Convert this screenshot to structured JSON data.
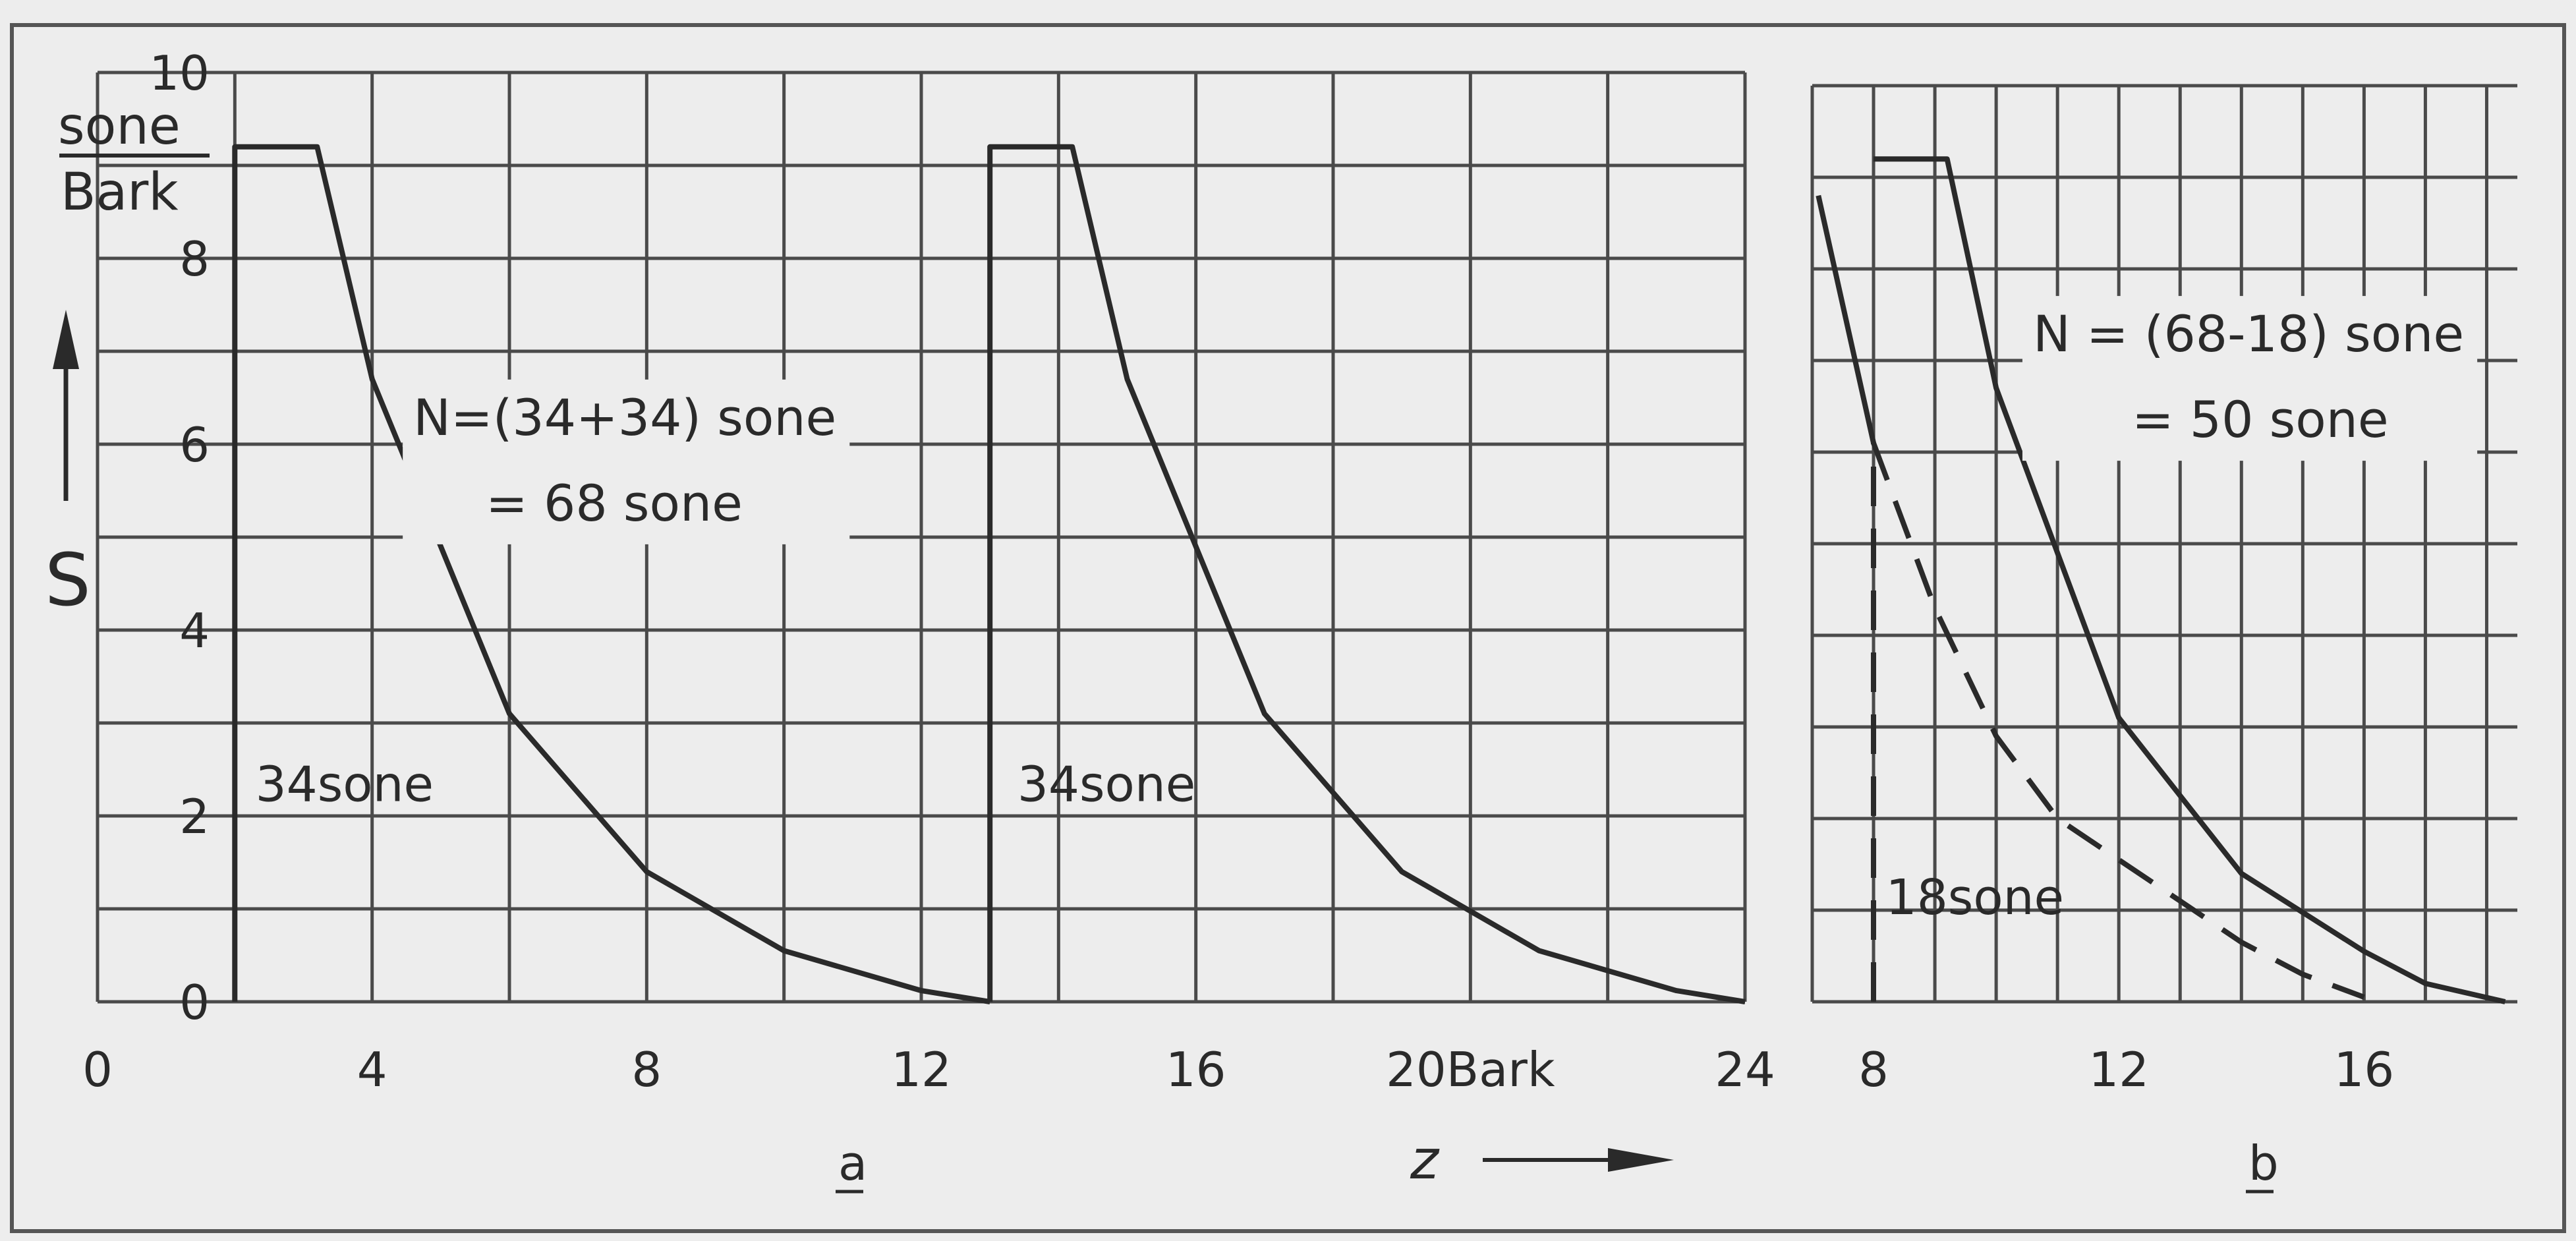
{
  "figure": {
    "y_unit_num": "sone",
    "y_unit_den": "Bark",
    "y_symbol": "S",
    "x_symbol": "z",
    "x_unit": "Bark",
    "panel_a_label": "a",
    "panel_b_label": "b",
    "text_color": "#2a2a2a",
    "grid_color": "#4a4a4a",
    "background": "#ededed"
  },
  "chart_data": [
    {
      "panel": "a",
      "type": "line",
      "xlim": [
        0,
        24
      ],
      "ylim": [
        0,
        10
      ],
      "xticks": [
        0,
        4,
        8,
        12,
        16,
        20,
        24
      ],
      "xtick_labels": [
        "0",
        "4",
        "8",
        "12",
        "16",
        "20Bark",
        "24"
      ],
      "yticks": [
        0,
        2,
        4,
        6,
        8,
        10
      ],
      "ytick_labels": [
        "0",
        "2",
        "4",
        "6",
        "8",
        "10"
      ],
      "grid": true,
      "x_grid_step": 2,
      "y_grid_step": 1,
      "series": [
        {
          "line_style": "solid",
          "points": [
            [
              2,
              0
            ],
            [
              2,
              9.2
            ],
            [
              3.2,
              9.2
            ],
            [
              4,
              6.7
            ],
            [
              6,
              3.1
            ],
            [
              8,
              1.4
            ],
            [
              10,
              0.55
            ],
            [
              12,
              0.12
            ],
            [
              13,
              0
            ]
          ]
        },
        {
          "line_style": "solid",
          "points": [
            [
              13,
              0
            ],
            [
              13,
              9.2
            ],
            [
              14.2,
              9.2
            ],
            [
              15,
              6.7
            ],
            [
              17,
              3.1
            ],
            [
              19,
              1.4
            ],
            [
              21,
              0.55
            ],
            [
              23,
              0.12
            ],
            [
              24,
              0
            ]
          ]
        }
      ],
      "annotations": [
        {
          "text": "34sone",
          "x": 2.3,
          "y": 2.3
        },
        {
          "text": "34sone",
          "x": 13.4,
          "y": 2.3
        }
      ],
      "equation": {
        "line1": "N=(34+34) sone",
        "line2": "= 68 sone",
        "x": 4.6,
        "y": 6.1
      }
    },
    {
      "panel": "b",
      "type": "line",
      "xlim": [
        7,
        18.5
      ],
      "ylim": [
        0,
        10
      ],
      "xticks": [
        8,
        12,
        16
      ],
      "xtick_labels": [
        "8",
        "12",
        "16"
      ],
      "grid": true,
      "x_grid_step": 1,
      "y_grid_step": 1,
      "series": [
        {
          "line_style": "solid",
          "points": [
            [
              7.1,
              8.8
            ],
            [
              7.5,
              7.6
            ],
            [
              8.0,
              6.1
            ]
          ]
        },
        {
          "line_style": "solid",
          "points": [
            [
              8,
              9.2
            ],
            [
              9.2,
              9.2
            ],
            [
              10,
              6.7
            ],
            [
              12,
              3.1
            ],
            [
              14,
              1.4
            ],
            [
              16,
              0.55
            ],
            [
              17,
              0.2
            ],
            [
              18.3,
              0
            ]
          ]
        },
        {
          "line_style": "dashed",
          "points": [
            [
              8.0,
              6.1
            ],
            [
              9,
              4.3
            ],
            [
              10,
              2.9
            ],
            [
              11,
              2.0
            ],
            [
              12,
              1.55
            ],
            [
              13,
              1.1
            ],
            [
              14,
              0.65
            ],
            [
              15,
              0.3
            ],
            [
              16,
              0.05
            ]
          ]
        },
        {
          "line_style": "dashed",
          "points": [
            [
              8,
              0
            ],
            [
              8,
              6.1
            ]
          ]
        }
      ],
      "annotations": [
        {
          "text": "18sone",
          "x": 8.2,
          "y": 1.1
        }
      ],
      "equation": {
        "line1": "N  = (68-18) sone",
        "line2": "=  50 sone",
        "x": 10.6,
        "y": 7.1
      }
    }
  ]
}
